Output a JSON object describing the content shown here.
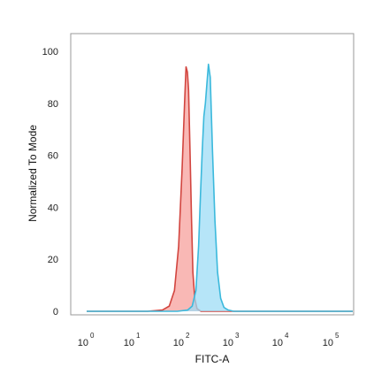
{
  "chart_data": {
    "type": "area",
    "title": "",
    "xlabel": "FITC-A",
    "ylabel": "Normalized To Mode",
    "xscale": "log",
    "xlim": [
      1,
      316228
    ],
    "ylim": [
      0,
      100
    ],
    "y_ticks": [
      "0",
      "20",
      "40",
      "60",
      "80",
      "100"
    ],
    "x_ticks": [
      {
        "base": "10",
        "exp": "0"
      },
      {
        "base": "10",
        "exp": "1"
      },
      {
        "base": "10",
        "exp": "2"
      },
      {
        "base": "10",
        "exp": "3"
      },
      {
        "base": "10",
        "exp": "4"
      },
      {
        "base": "10",
        "exp": "5"
      }
    ],
    "grid": false,
    "legend": "none",
    "series": [
      {
        "fill": "#f7a09c",
        "stroke": "#d2453f",
        "x": [
          1,
          20,
          40,
          55,
          70,
          85,
          100,
          112,
          120,
          128,
          135,
          145,
          155,
          165,
          180,
          200,
          240,
          316228
        ],
        "y": [
          0,
          0,
          0.5,
          2,
          8,
          25,
          55,
          80,
          94,
          92,
          85,
          60,
          35,
          15,
          5,
          1,
          0,
          0
        ]
      },
      {
        "fill": "#9edcf5",
        "stroke": "#3bb9dc",
        "x": [
          1,
          80,
          130,
          160,
          190,
          215,
          235,
          255,
          275,
          295,
          315,
          340,
          370,
          410,
          460,
          520,
          600,
          700,
          850,
          1100,
          316228
        ],
        "y": [
          0,
          0,
          0.5,
          2,
          8,
          25,
          45,
          62,
          75,
          80,
          87,
          95,
          90,
          62,
          35,
          15,
          5,
          1.5,
          0.5,
          0,
          0
        ]
      }
    ]
  }
}
